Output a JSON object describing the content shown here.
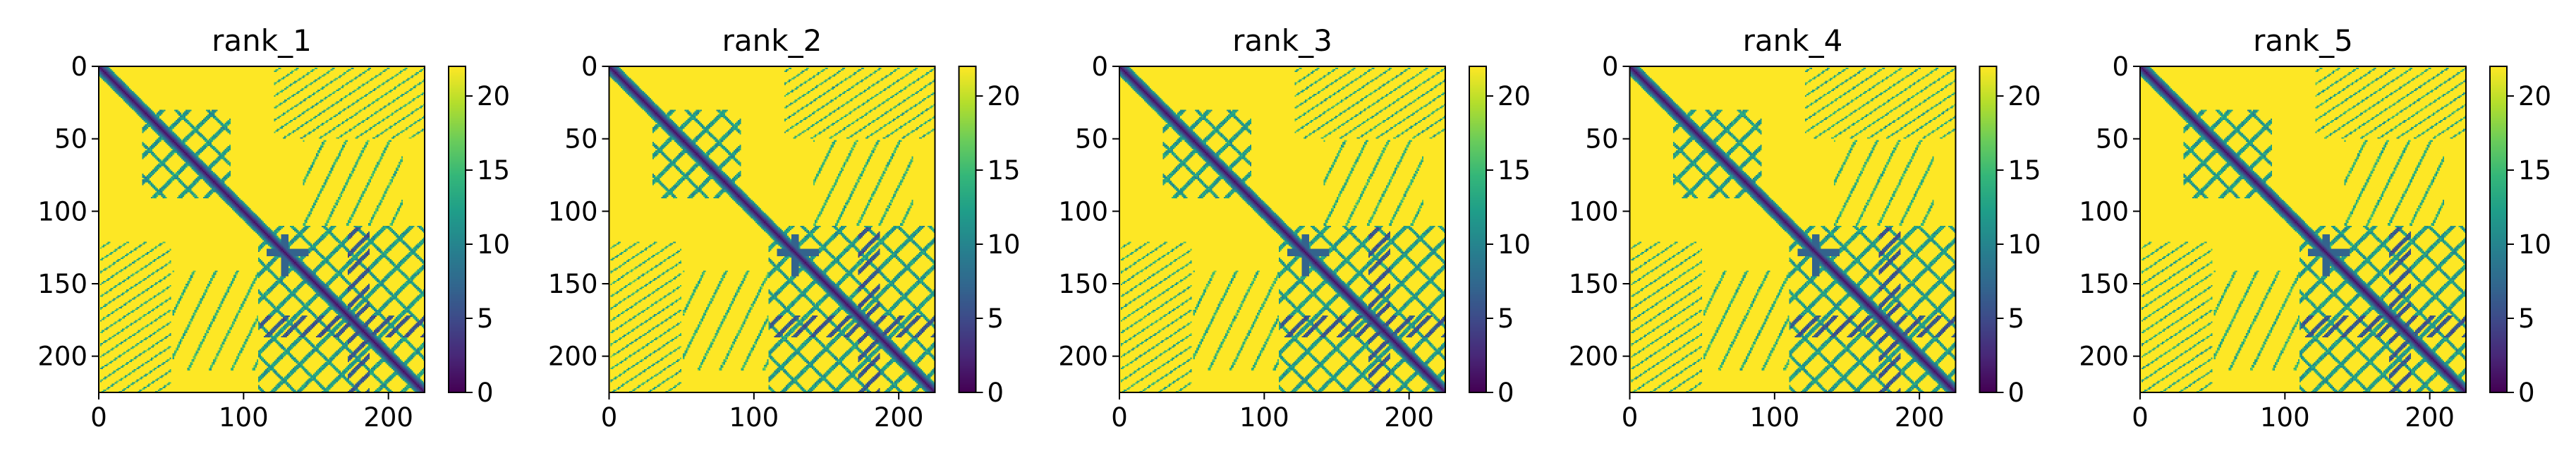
{
  "figure": {
    "panel_count": 5
  },
  "chart_data": [
    {
      "type": "heatmap",
      "title": "rank_1",
      "xlabel": "",
      "ylabel": "",
      "xlim": [
        0,
        225
      ],
      "ylim": [
        225,
        0
      ],
      "xticks": [
        0,
        100,
        200
      ],
      "yticks": [
        0,
        50,
        100,
        150,
        200
      ],
      "colorbar": {
        "min": 0,
        "max": 22,
        "ticks": [
          0,
          5,
          10,
          15,
          20
        ]
      },
      "colormap": "viridis",
      "pattern_description": "pairwise distance map; dark diagonal band (low values) with blue-green off-diagonal contact blocks on a yellow (high value) background",
      "features": {
        "diagonal": true,
        "antidiagonal_blocks": [
          [
            50,
            50
          ],
          [
            130,
            175
          ],
          [
            175,
            130
          ]
        ],
        "helix_blocks": [
          [
            30,
            90,
            30,
            90
          ],
          [
            110,
            225,
            110,
            225
          ]
        ],
        "side_bands_y": [
          140,
          160,
          185,
          205
        ],
        "dark_x_band": [
          175,
          185
        ]
      }
    },
    {
      "type": "heatmap",
      "title": "rank_2",
      "xlabel": "",
      "ylabel": "",
      "xlim": [
        0,
        225
      ],
      "ylim": [
        225,
        0
      ],
      "xticks": [
        0,
        100,
        200
      ],
      "yticks": [
        0,
        50,
        100,
        150,
        200
      ],
      "colorbar": {
        "min": 0,
        "max": 22,
        "ticks": [
          0,
          5,
          10,
          15,
          20
        ]
      },
      "colormap": "viridis",
      "pattern_description": "pairwise distance map; dark diagonal band with blue-green contact blocks on a yellow background",
      "features": {
        "diagonal": true,
        "antidiagonal_blocks": [
          [
            50,
            50
          ],
          [
            130,
            175
          ],
          [
            175,
            130
          ]
        ],
        "helix_blocks": [
          [
            30,
            90,
            30,
            90
          ],
          [
            110,
            225,
            110,
            225
          ]
        ],
        "side_bands_y": [
          140,
          160,
          185,
          205
        ],
        "dark_x_band": [
          175,
          185
        ]
      }
    },
    {
      "type": "heatmap",
      "title": "rank_3",
      "xlabel": "",
      "ylabel": "",
      "xlim": [
        0,
        225
      ],
      "ylim": [
        225,
        0
      ],
      "xticks": [
        0,
        100,
        200
      ],
      "yticks": [
        0,
        50,
        100,
        150,
        200
      ],
      "colorbar": {
        "min": 0,
        "max": 22,
        "ticks": [
          0,
          5,
          10,
          15,
          20
        ]
      },
      "colormap": "viridis",
      "pattern_description": "pairwise distance map; dark diagonal band with blue-green contact blocks on a yellow background",
      "features": {
        "diagonal": true,
        "antidiagonal_blocks": [
          [
            50,
            50
          ],
          [
            130,
            175
          ],
          [
            175,
            130
          ]
        ],
        "helix_blocks": [
          [
            30,
            90,
            30,
            90
          ],
          [
            110,
            225,
            110,
            225
          ]
        ],
        "side_bands_y": [
          140,
          160,
          185,
          205
        ],
        "dark_x_band": [
          175,
          185
        ]
      }
    },
    {
      "type": "heatmap",
      "title": "rank_4",
      "xlabel": "",
      "ylabel": "",
      "xlim": [
        0,
        225
      ],
      "ylim": [
        225,
        0
      ],
      "xticks": [
        0,
        100,
        200
      ],
      "yticks": [
        0,
        50,
        100,
        150,
        200
      ],
      "colorbar": {
        "min": 0,
        "max": 22,
        "ticks": [
          0,
          5,
          10,
          15,
          20
        ]
      },
      "colormap": "viridis",
      "pattern_description": "pairwise distance map; dark diagonal band with blue-green contact blocks on a yellow background",
      "features": {
        "diagonal": true,
        "antidiagonal_blocks": [
          [
            50,
            50
          ],
          [
            130,
            175
          ],
          [
            175,
            130
          ]
        ],
        "helix_blocks": [
          [
            30,
            90,
            30,
            90
          ],
          [
            110,
            225,
            110,
            225
          ]
        ],
        "side_bands_y": [
          140,
          160,
          185,
          205
        ],
        "dark_x_band": [
          175,
          185
        ]
      }
    },
    {
      "type": "heatmap",
      "title": "rank_5",
      "xlabel": "",
      "ylabel": "",
      "xlim": [
        0,
        225
      ],
      "ylim": [
        225,
        0
      ],
      "xticks": [
        0,
        100,
        200
      ],
      "yticks": [
        0,
        50,
        100,
        150,
        200
      ],
      "colorbar": {
        "min": 0,
        "max": 22,
        "ticks": [
          0,
          5,
          10,
          15,
          20
        ]
      },
      "colormap": "viridis",
      "pattern_description": "pairwise distance map; dark diagonal band with blue-green contact blocks on a yellow background",
      "features": {
        "diagonal": true,
        "antidiagonal_blocks": [
          [
            50,
            50
          ],
          [
            130,
            175
          ],
          [
            175,
            130
          ]
        ],
        "helix_blocks": [
          [
            30,
            90,
            30,
            90
          ],
          [
            110,
            225,
            110,
            225
          ]
        ],
        "side_bands_y": [
          140,
          160,
          185,
          205
        ],
        "dark_x_band": [
          175,
          185
        ]
      }
    }
  ]
}
